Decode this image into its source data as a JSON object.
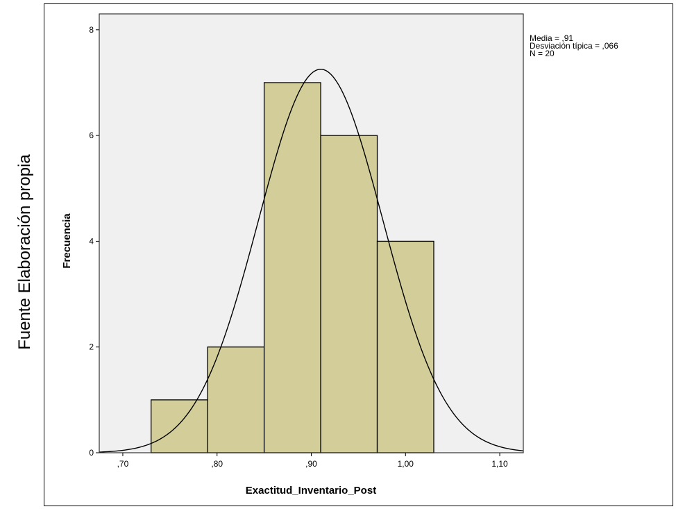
{
  "side_caption": "Fuente Elaboración propia",
  "chart_data": {
    "type": "bar",
    "subtype": "histogram",
    "xlabel": "Exactitud_Inventario_Post",
    "ylabel": "Frecuencia",
    "xlim": [
      0.675,
      1.125
    ],
    "ylim": [
      0,
      8.3
    ],
    "x_ticks": [
      0.7,
      0.8,
      0.9,
      1.0,
      1.1
    ],
    "x_tick_labels": [
      ",70",
      ",80",
      ",90",
      "1,00",
      "1,10"
    ],
    "y_ticks": [
      0,
      2,
      4,
      6,
      8
    ],
    "y_tick_labels": [
      "0",
      "2",
      "4",
      "6",
      "8"
    ],
    "bins": [
      {
        "start": 0.73,
        "end": 0.79,
        "count": 1
      },
      {
        "start": 0.79,
        "end": 0.85,
        "count": 2
      },
      {
        "start": 0.85,
        "end": 0.91,
        "count": 7
      },
      {
        "start": 0.91,
        "end": 0.97,
        "count": 6
      },
      {
        "start": 0.97,
        "end": 1.03,
        "count": 4
      }
    ],
    "normal_curve": {
      "mean": 0.91,
      "sd": 0.066,
      "n": 20,
      "bin_width": 0.06
    },
    "stats_text": [
      "Media = ,91",
      "Desviación típica = ,066",
      "N = 20"
    ],
    "grid": false,
    "legend_position": "top-right",
    "colors": {
      "bar_fill": "#d3ce99",
      "bar_stroke": "#000000",
      "plot_background": "#f0f0f0",
      "curve": "#000000"
    }
  }
}
